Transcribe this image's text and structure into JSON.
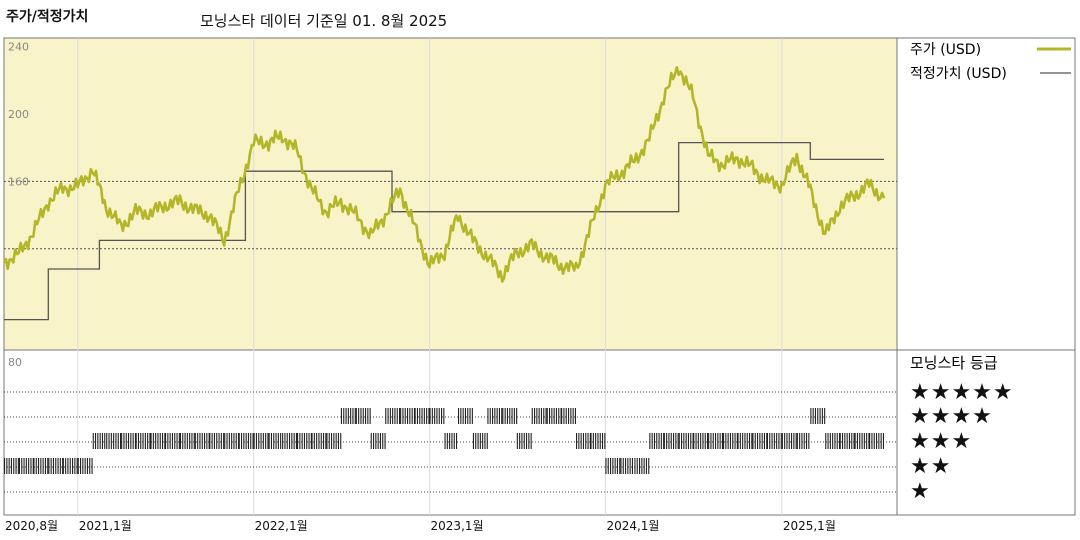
{
  "header": {
    "title": "주가/적정가치",
    "subtitle": "모닝스타 데이터 기준일 01. 8월 2025"
  },
  "colors": {
    "price": "#b4b62a",
    "fair_value": "#555555",
    "upper_bg": "#f9f3c9",
    "grid": "#555555",
    "bars": "#222222"
  },
  "chart_data": [
    {
      "type": "line",
      "ylim": [
        60,
        245
      ],
      "yticks": [
        "240",
        "200",
        "160"
      ],
      "ytick_values": [
        240,
        200,
        160
      ],
      "dashed_lines": [
        160,
        120
      ],
      "x_range": [
        "2020-08-01",
        "2025-08-01"
      ],
      "xticks": [
        {
          "label": "2020,8월",
          "date": "2020-08-01"
        },
        {
          "label": "2021,1월",
          "date": "2021-01-01"
        },
        {
          "label": "2022,1월",
          "date": "2022-01-01"
        },
        {
          "label": "2023,1월",
          "date": "2023-01-01"
        },
        {
          "label": "2024,1월",
          "date": "2024-01-01"
        },
        {
          "label": "2025,1월",
          "date": "2025-01-01"
        }
      ],
      "series": [
        {
          "name": "주가 (USD)",
          "key": "price",
          "points": [
            [
              "2020-08-01",
              112
            ],
            [
              "2020-09-01",
              117
            ],
            [
              "2020-10-01",
              130
            ],
            [
              "2020-11-01",
              148
            ],
            [
              "2020-12-01",
              156
            ],
            [
              "2021-01-01",
              157
            ],
            [
              "2021-02-01",
              167
            ],
            [
              "2021-03-01",
              145
            ],
            [
              "2021-04-01",
              133
            ],
            [
              "2021-05-01",
              142
            ],
            [
              "2021-06-01",
              141
            ],
            [
              "2021-07-01",
              146
            ],
            [
              "2021-08-01",
              148
            ],
            [
              "2021-09-01",
              143
            ],
            [
              "2021-10-01",
              140
            ],
            [
              "2021-11-01",
              125
            ],
            [
              "2021-12-01",
              155
            ],
            [
              "2022-01-01",
              183
            ],
            [
              "2022-02-01",
              183
            ],
            [
              "2022-03-01",
              187
            ],
            [
              "2022-04-01",
              178
            ],
            [
              "2022-05-01",
              155
            ],
            [
              "2022-06-01",
              142
            ],
            [
              "2022-07-01",
              148
            ],
            [
              "2022-08-01",
              140
            ],
            [
              "2022-09-01",
              128
            ],
            [
              "2022-10-01",
              140
            ],
            [
              "2022-11-01",
              155
            ],
            [
              "2022-12-01",
              133
            ],
            [
              "2023-01-01",
              110
            ],
            [
              "2023-02-01",
              118
            ],
            [
              "2023-03-01",
              140
            ],
            [
              "2023-04-01",
              125
            ],
            [
              "2023-05-01",
              115
            ],
            [
              "2023-06-01",
              104
            ],
            [
              "2023-07-01",
              118
            ],
            [
              "2023-08-01",
              122
            ],
            [
              "2023-09-01",
              115
            ],
            [
              "2023-10-01",
              110
            ],
            [
              "2023-11-01",
              108
            ],
            [
              "2023-12-01",
              132
            ],
            [
              "2024-01-01",
              158
            ],
            [
              "2024-02-01",
              165
            ],
            [
              "2024-03-01",
              172
            ],
            [
              "2024-04-01",
              185
            ],
            [
              "2024-05-01",
              210
            ],
            [
              "2024-06-01",
              228
            ],
            [
              "2024-07-01",
              210
            ],
            [
              "2024-08-01",
              175
            ],
            [
              "2024-09-01",
              170
            ],
            [
              "2024-10-01",
              174
            ],
            [
              "2024-11-01",
              168
            ],
            [
              "2024-12-01",
              160
            ],
            [
              "2025-01-01",
              158
            ],
            [
              "2025-02-01",
              175
            ],
            [
              "2025-03-01",
              155
            ],
            [
              "2025-04-01",
              128
            ],
            [
              "2025-05-01",
              145
            ],
            [
              "2025-06-01",
              152
            ],
            [
              "2025-07-01",
              158
            ],
            [
              "2025-08-01",
              150
            ]
          ]
        },
        {
          "name": "적정가치 (USD)",
          "key": "fair_value",
          "steps": [
            [
              "2020-08-01",
              78
            ],
            [
              "2020-11-01",
              108
            ],
            [
              "2021-02-15",
              125
            ],
            [
              "2021-12-15",
              166
            ],
            [
              "2022-10-15",
              142
            ],
            [
              "2024-06-01",
              183
            ],
            [
              "2025-03-01",
              173
            ],
            [
              "2025-08-01",
              173
            ]
          ]
        }
      ]
    },
    {
      "type": "timeline",
      "title": "모닝스타 등급",
      "ytick": "80",
      "levels": [
        "★★★★★",
        "★★★★",
        "★★★",
        "★★",
        "★"
      ],
      "ratings": [
        [
          "2020-08-01",
          2
        ],
        [
          "2020-09-01",
          2
        ],
        [
          "2020-10-01",
          2
        ],
        [
          "2020-11-01",
          2
        ],
        [
          "2020-12-01",
          2
        ],
        [
          "2021-01-01",
          2
        ],
        [
          "2021-02-01",
          3
        ],
        [
          "2021-03-01",
          3
        ],
        [
          "2021-04-01",
          3
        ],
        [
          "2021-05-01",
          3
        ],
        [
          "2021-06-01",
          3
        ],
        [
          "2021-07-01",
          3
        ],
        [
          "2021-08-01",
          3
        ],
        [
          "2021-09-01",
          3
        ],
        [
          "2021-10-01",
          3
        ],
        [
          "2021-11-01",
          3
        ],
        [
          "2021-12-01",
          3
        ],
        [
          "2022-01-01",
          3
        ],
        [
          "2022-02-01",
          3
        ],
        [
          "2022-03-01",
          3
        ],
        [
          "2022-04-01",
          3
        ],
        [
          "2022-05-01",
          3
        ],
        [
          "2022-06-01",
          3
        ],
        [
          "2022-07-01",
          4
        ],
        [
          "2022-08-01",
          4
        ],
        [
          "2022-09-01",
          3
        ],
        [
          "2022-10-01",
          4
        ],
        [
          "2022-11-01",
          4
        ],
        [
          "2022-12-01",
          4
        ],
        [
          "2023-01-01",
          4
        ],
        [
          "2023-02-01",
          3
        ],
        [
          "2023-03-01",
          4
        ],
        [
          "2023-04-01",
          3
        ],
        [
          "2023-05-01",
          4
        ],
        [
          "2023-06-01",
          4
        ],
        [
          "2023-07-01",
          3
        ],
        [
          "2023-08-01",
          4
        ],
        [
          "2023-09-01",
          4
        ],
        [
          "2023-10-01",
          4
        ],
        [
          "2023-11-01",
          3
        ],
        [
          "2023-12-01",
          3
        ],
        [
          "2024-01-01",
          2
        ],
        [
          "2024-02-01",
          2
        ],
        [
          "2024-03-01",
          2
        ],
        [
          "2024-04-01",
          3
        ],
        [
          "2024-05-01",
          3
        ],
        [
          "2024-06-01",
          3
        ],
        [
          "2024-07-01",
          3
        ],
        [
          "2024-08-01",
          3
        ],
        [
          "2024-09-01",
          3
        ],
        [
          "2024-10-01",
          3
        ],
        [
          "2024-11-01",
          3
        ],
        [
          "2024-12-01",
          3
        ],
        [
          "2025-01-01",
          3
        ],
        [
          "2025-02-01",
          3
        ],
        [
          "2025-03-01",
          4
        ],
        [
          "2025-04-01",
          3
        ],
        [
          "2025-05-01",
          3
        ],
        [
          "2025-06-01",
          3
        ],
        [
          "2025-07-01",
          3
        ]
      ]
    }
  ]
}
